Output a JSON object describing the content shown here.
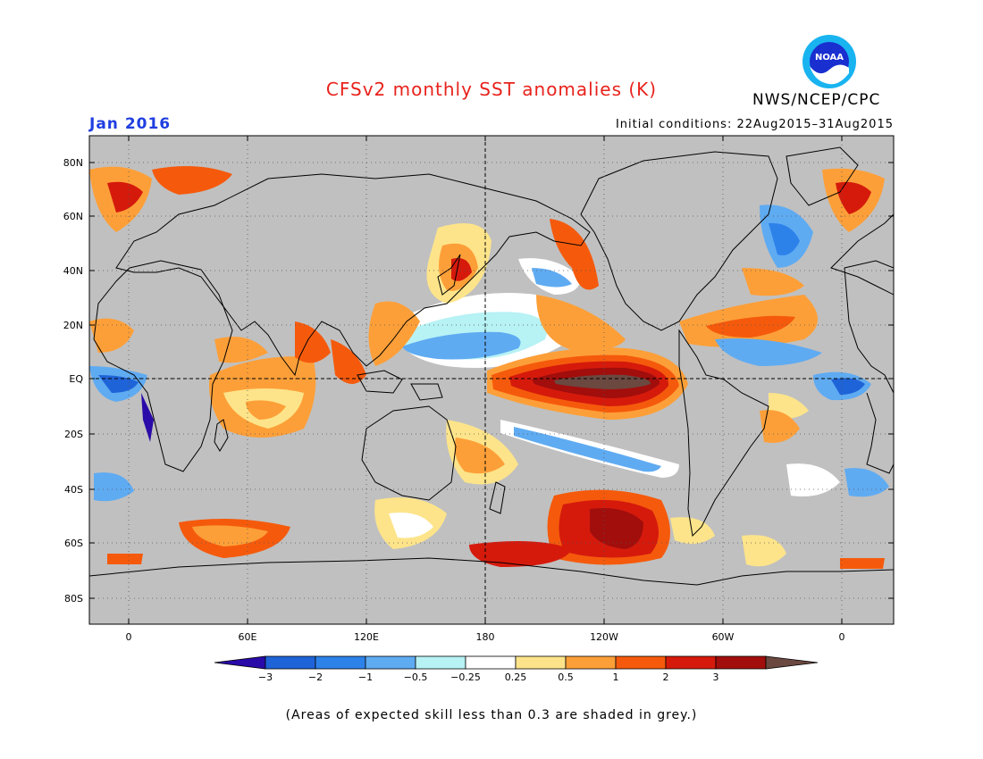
{
  "header": {
    "title": "CFSv2 monthly SST anomalies (K)",
    "agency": "NWS/NCEP/CPC",
    "logo_text": "NOAA",
    "month": "Jan 2016",
    "initial_conditions": "Initial conditions: 22Aug2015–31Aug2015"
  },
  "map": {
    "lat_labels": [
      "80N",
      "60N",
      "40N",
      "20N",
      "EQ",
      "20S",
      "40S",
      "60S",
      "80S"
    ],
    "lon_labels": [
      "0",
      "60E",
      "120E",
      "180",
      "120W",
      "60W",
      "0"
    ],
    "colors": {
      "land": "#c8c8c8",
      "ocean_background": "#c0c0c0",
      "gridline": "#555555"
    }
  },
  "colorbar": {
    "tick_labels": [
      "−3",
      "−2",
      "−1",
      "−0.5",
      "−0.25",
      "0.25",
      "0.5",
      "1",
      "2",
      "3"
    ],
    "colors": [
      "#2a0aa8",
      "#1f63d8",
      "#2d82ea",
      "#5fabf2",
      "#b7f2f5",
      "#ffffff",
      "#fde48a",
      "#fd9f38",
      "#f55a0c",
      "#d51a0c",
      "#a10e0c",
      "#6b4840"
    ]
  },
  "footnote": "(Areas of expected skill less than 0.3 are shaded in grey.)"
}
